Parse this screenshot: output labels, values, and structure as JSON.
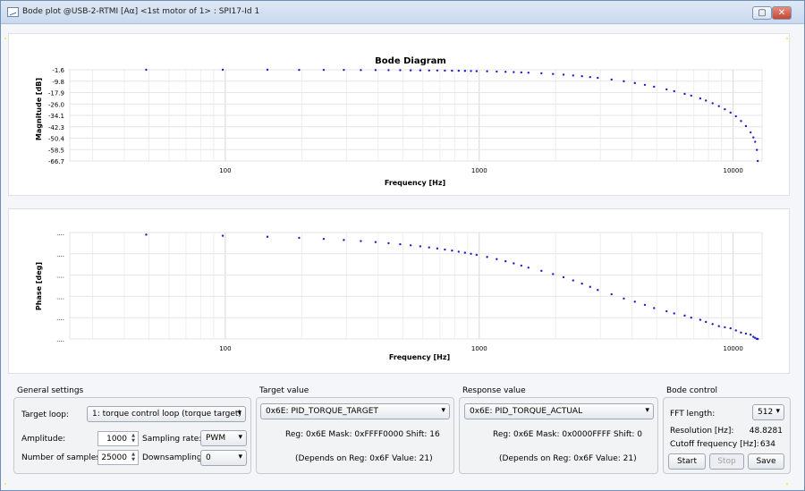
{
  "window": {
    "title": "Bode plot @USB-2-RTMI [Aα] <1st motor of 1> : SPI17-Id 1",
    "restore_icon": "restore-icon",
    "close_icon": "close-icon"
  },
  "plots": {
    "magnitude": {
      "title": "Bode Diagram",
      "ylabel": "Magnitude [dB]",
      "xlabel": "Frequency [Hz]",
      "ytick_labels": [
        "-1.6",
        "-9.8",
        "-17.9",
        "-26.0",
        "-34.1",
        "-42.3",
        "-50.4",
        "-58.5",
        "-66.7"
      ],
      "xtick_labels": [
        "100",
        "1000",
        "10000"
      ]
    },
    "phase": {
      "ylabel": "Phase [deg]",
      "xlabel": "Frequency [Hz]",
      "ytick_labels": [
        "....",
        "....",
        "....",
        "....",
        "....",
        "...."
      ],
      "xtick_labels": [
        "100",
        "1000",
        "10000"
      ]
    }
  },
  "chart_data": [
    {
      "type": "scatter",
      "title": "Bode Diagram",
      "xlabel": "Frequency [Hz]",
      "ylabel": "Magnitude [dB]",
      "x_scale": "log",
      "xlim": [
        24.4,
        13000
      ],
      "ylim": [
        -66.7,
        -1.6
      ],
      "grid": true,
      "series": [
        {
          "x": [
            48.8,
            97.7,
            146.5,
            195.3,
            244.1,
            293.0,
            341.8,
            390.6,
            439.5,
            488.3,
            537.1,
            585.9,
            634.8,
            683.6,
            732.4,
            781.3,
            830.1,
            878.9,
            927.7,
            976.6,
            1074.2,
            1171.9,
            1269.5,
            1367.2,
            1464.8,
            1562.5,
            1757.8,
            1953.1,
            2148.4,
            2343.8,
            2539.1,
            2734.4,
            2929.7,
            3320.3,
            3710.9,
            4101.6,
            4492.2,
            4882.8,
            5468.8,
            5859.4,
            6445.3,
            6835.9,
            7421.9,
            7812.5,
            8300.8,
            8789.1,
            9277.3,
            9765.6,
            10253.9,
            10742.2,
            11230.5,
            11718.8,
            12011.7,
            12207.0,
            12402.3,
            12500.0
          ],
          "y": [
            -1.6,
            -1.6,
            -1.6,
            -1.7,
            -1.7,
            -1.7,
            -1.8,
            -1.8,
            -1.9,
            -1.9,
            -2.0,
            -2.0,
            -2.1,
            -2.1,
            -2.2,
            -2.3,
            -2.3,
            -2.4,
            -2.5,
            -2.6,
            -2.7,
            -2.9,
            -3.1,
            -3.3,
            -3.5,
            -3.7,
            -4.1,
            -4.6,
            -5.1,
            -5.7,
            -6.2,
            -6.8,
            -7.4,
            -8.6,
            -9.8,
            -11.1,
            -12.4,
            -13.7,
            -15.6,
            -16.9,
            -18.8,
            -20.1,
            -22.1,
            -23.6,
            -25.5,
            -27.6,
            -29.8,
            -32.2,
            -34.8,
            -38.2,
            -41.8,
            -46.3,
            -49.9,
            -53.0,
            -58.8,
            -66.7
          ]
        }
      ]
    },
    {
      "type": "scatter",
      "xlabel": "Frequency [Hz]",
      "ylabel": "Phase [deg]",
      "x_scale": "log",
      "xlim": [
        24.4,
        13000
      ],
      "ylim": [
        -100,
        0
      ],
      "grid": true,
      "series": [
        {
          "x": [
            48.8,
            97.7,
            146.5,
            195.3,
            244.1,
            293.0,
            341.8,
            390.6,
            439.5,
            488.3,
            537.1,
            585.9,
            634.8,
            683.6,
            732.4,
            781.3,
            830.1,
            878.9,
            927.7,
            976.6,
            1074.2,
            1171.9,
            1269.5,
            1367.2,
            1464.8,
            1562.5,
            1757.8,
            1953.1,
            2148.4,
            2343.8,
            2539.1,
            2734.4,
            2929.7,
            3320.3,
            3710.9,
            4101.6,
            4492.2,
            4882.8,
            5468.8,
            5859.4,
            6445.3,
            6835.9,
            7421.9,
            7812.5,
            8300.8,
            8789.1,
            9277.3,
            9765.6,
            10253.9,
            10742.2,
            11230.5,
            11718.8,
            12011.7,
            12207.0,
            12402.3,
            12500.0
          ],
          "y": [
            -2,
            -3,
            -4,
            -5,
            -6,
            -7,
            -8,
            -9,
            -10,
            -11,
            -12,
            -13,
            -14,
            -15,
            -16,
            -17,
            -18,
            -19,
            -20,
            -21,
            -23,
            -25,
            -27,
            -29,
            -31,
            -33,
            -36,
            -39,
            -42,
            -45,
            -48,
            -51,
            -54,
            -58,
            -62,
            -65,
            -68,
            -71,
            -74,
            -76,
            -78,
            -80,
            -82,
            -84,
            -86,
            -88,
            -89,
            -90,
            -92,
            -94,
            -95,
            -96,
            -98,
            -99,
            -100,
            -100
          ]
        }
      ]
    }
  ],
  "general_settings": {
    "title": "General settings",
    "target_loop_label": "Target loop:",
    "target_loop_value": "1: torque control loop (torque target)",
    "amplitude_label": "Amplitude:",
    "amplitude_value": "1000",
    "sampling_rate_label": "Sampling rate:",
    "sampling_rate_value": "PWM",
    "samples_label": "Number of samples:",
    "samples_value": "25000",
    "downsampling_label": "Downsampling:",
    "downsampling_value": "0"
  },
  "target_value": {
    "title": "Target value",
    "selection": "0x6E: PID_TORQUE_TARGET",
    "reg_line": "Reg: 0x6E   Mask: 0xFFFF0000   Shift: 16",
    "depends": "(Depends on Reg: 0x6F   Value: 21)"
  },
  "response_value": {
    "title": "Response value",
    "selection": "0x6E: PID_TORQUE_ACTUAL",
    "reg_line": "Reg: 0x6E   Mask: 0x0000FFFF   Shift: 0",
    "depends": "(Depends on Reg: 0x6F   Value: 21)"
  },
  "bode_control": {
    "title": "Bode control",
    "fft_label": "FFT length:",
    "fft_value": "512",
    "resolution_label": "Resolution [Hz]:",
    "resolution_value": "48.8281",
    "cutoff_label": "Cutoff frequency [Hz]:",
    "cutoff_value": "634",
    "start_label": "Start",
    "stop_label": "Stop",
    "save_label": "Save"
  }
}
